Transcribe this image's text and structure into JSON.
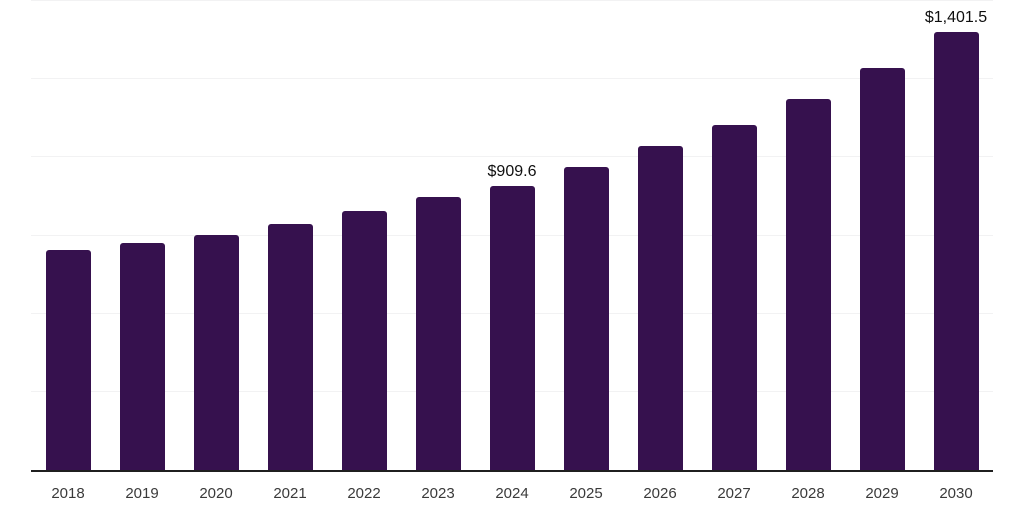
{
  "chart_data": {
    "type": "bar",
    "title": "",
    "xlabel": "",
    "ylabel": "",
    "categories": [
      "2018",
      "2019",
      "2020",
      "2021",
      "2022",
      "2023",
      "2024",
      "2025",
      "2026",
      "2027",
      "2028",
      "2029",
      "2030"
    ],
    "values": [
      703,
      726,
      752,
      787,
      828,
      873,
      909.6,
      968,
      1035,
      1105,
      1188,
      1287,
      1401.5
    ],
    "labels": [
      "",
      "",
      "",
      "",
      "",
      "",
      "$909.6",
      "",
      "",
      "",
      "",
      "",
      "$1,401.5"
    ],
    "labeled_points": [
      {
        "category": "2024",
        "label": "$909.6",
        "value": 909.6
      },
      {
        "category": "2030",
        "label": "$1,401.5",
        "value": 1401.5
      }
    ],
    "ylim": [
      0,
      1500
    ],
    "gridline_step": 250,
    "grid": true,
    "legend_position": "none",
    "bar_color": "#36114e",
    "axis_line_color": "#1f1f1f",
    "gridline_color": "#f2f2f3",
    "tick_label_color": "#3a3a3a",
    "data_label_color": "#0f0f0f",
    "background_color": "#ffffff"
  }
}
